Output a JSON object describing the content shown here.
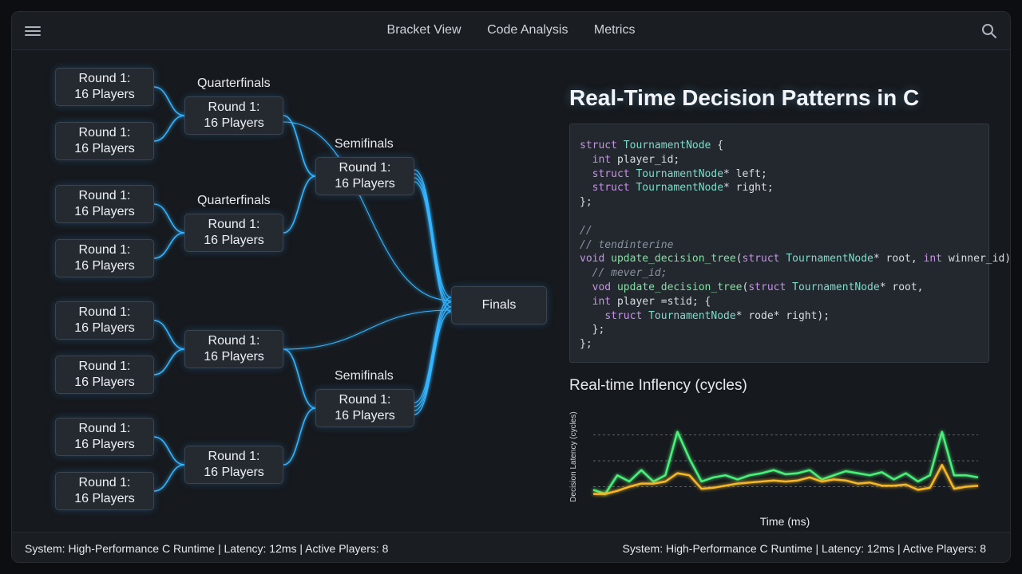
{
  "nav": {
    "items": [
      "Bracket View",
      "Code Analysis",
      "Metrics"
    ],
    "menu_icon": "hamburger-menu-icon",
    "search_icon": "search-icon"
  },
  "bracket": {
    "round1_nodes": [
      {
        "line1": "Round 1:",
        "line2": "16 Players"
      },
      {
        "line1": "Round 1:",
        "line2": "16 Players"
      },
      {
        "line1": "Round 1:",
        "line2": "16 Players"
      },
      {
        "line1": "Round 1:",
        "line2": "16 Players"
      },
      {
        "line1": "Round 1:",
        "line2": "16 Players"
      },
      {
        "line1": "Round 1:",
        "line2": "16 Players"
      },
      {
        "line1": "Round 1:",
        "line2": "16 Players"
      },
      {
        "line1": "Round 1:",
        "line2": "16 Players"
      }
    ],
    "quarter_nodes": [
      {
        "line1": "Round 1:",
        "line2": "16 Players"
      },
      {
        "line1": "Round 1:",
        "line2": "16 Players"
      },
      {
        "line1": "Round 1:",
        "line2": "16 Players"
      },
      {
        "line1": "Round 1:",
        "line2": "16 Players"
      }
    ],
    "semi_nodes": [
      {
        "line1": "Round 1:",
        "line2": "16 Players"
      },
      {
        "line1": "Round 1:",
        "line2": "16 Players"
      }
    ],
    "labels": {
      "quarterfinals_1": "Quarterfinals",
      "quarterfinals_2": "Quarterfinals",
      "semifinals_1": "Semifinals",
      "semifinals_2": "Semifinals"
    },
    "finals": "Finals",
    "connector_color": "#35b4ff"
  },
  "panel": {
    "title": "Real-Time Decision Patterns in C",
    "code_lines": [
      "struct TournamentNode {",
      "  int player_id;",
      "  struct TournamentNode* left;",
      "  struct TournamentNode* right;",
      "};",
      "",
      "//",
      "// tendinterine",
      "void update_decision_tree(struct TournamentNode* root, int winner_id);",
      "  // mever_id;",
      "  vod update_decision_tree(struct TournamentNode* root,",
      "  int player =stid; {",
      "    struct TournamentNode* rode* right);",
      "  };",
      "};"
    ]
  },
  "chart_data": {
    "type": "line",
    "title": "Real-time Inflency (cycles)",
    "xlabel": "Time (ms)",
    "ylabel": "Decision Latency (cycles)",
    "grid": true,
    "x": [
      0,
      1,
      2,
      3,
      4,
      5,
      6,
      7,
      8,
      9,
      10,
      11,
      12,
      13,
      14,
      15,
      16,
      17,
      18,
      19,
      20,
      21,
      22,
      23,
      24,
      25,
      26,
      27,
      28,
      29,
      30,
      31,
      32
    ],
    "series": [
      {
        "color": "#4cf07a",
        "values": [
          2.2,
          1.8,
          3.6,
          3.0,
          4.1,
          3.0,
          3.6,
          7.8,
          5.2,
          3.0,
          3.4,
          3.6,
          3.2,
          3.6,
          3.8,
          4.1,
          3.7,
          3.8,
          4.1,
          3.2,
          3.6,
          4.0,
          3.8,
          3.6,
          3.9,
          3.2,
          3.8,
          3.0,
          3.6,
          7.8,
          3.6,
          3.6,
          3.4
        ]
      },
      {
        "color": "#f5b72a",
        "values": [
          1.8,
          1.8,
          2.1,
          2.5,
          2.8,
          2.8,
          3.0,
          3.8,
          3.6,
          2.3,
          2.4,
          2.6,
          2.8,
          2.9,
          3.0,
          3.1,
          3.0,
          3.1,
          3.4,
          3.0,
          3.2,
          3.1,
          2.8,
          2.9,
          2.6,
          2.6,
          2.7,
          2.2,
          2.4,
          4.6,
          2.3,
          2.5,
          2.6
        ]
      }
    ],
    "ylim": [
      0,
      10
    ]
  },
  "status": {
    "left": "System: High-Performance C Runtime | Latency: 12ms | Active Players: 8",
    "right": "System: High-Performance C Runtime | Latency: 12ms | Active Players: 8"
  }
}
